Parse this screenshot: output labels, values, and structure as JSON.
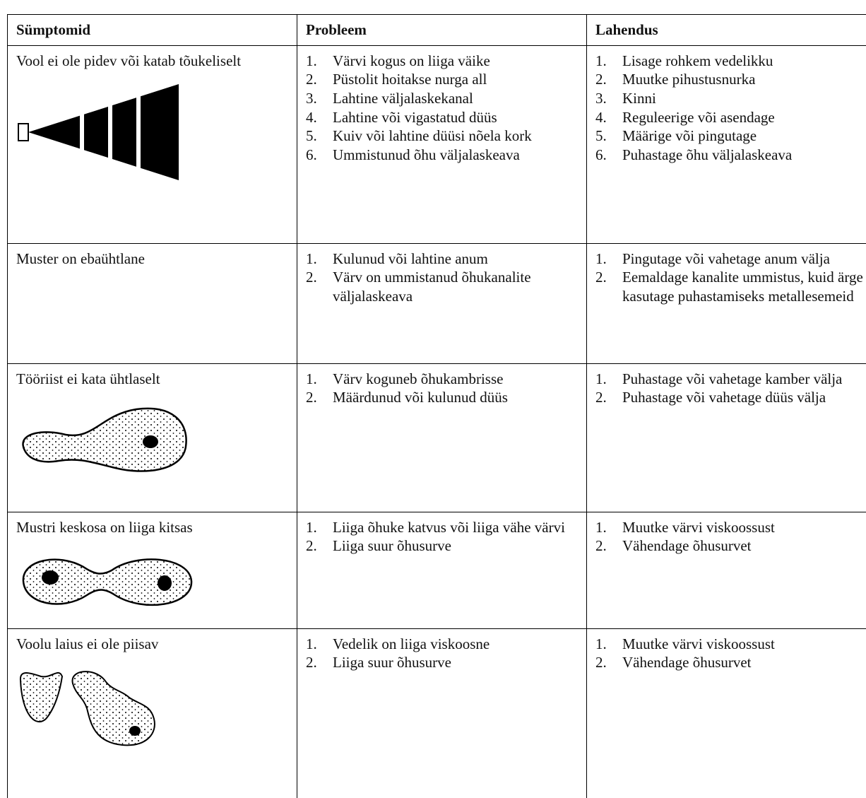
{
  "table": {
    "header": [
      "Sümptomid",
      "Probleem",
      "Lahendus"
    ],
    "rows": [
      {
        "symptom": "Vool ei ole pidev või katab tõukeliselt",
        "problem": [
          {
            "marker": "1.",
            "text": "Värvi kogus on liiga väike"
          },
          {
            "marker": "2.",
            "text": "Püstolit hoitakse nurga all"
          },
          {
            "marker": "3.",
            "text": "Lahtine väljalaskekanal"
          },
          {
            "marker": "4.",
            "text": "Lahtine või vigastatud düüs"
          },
          {
            "marker": "5.",
            "text": "Kuiv või lahtine düüsi nõela kork"
          },
          {
            "marker": "6.",
            "text": "Ummistunud õhu väljalaskeava"
          }
        ],
        "solution": [
          {
            "marker": "1.",
            "text": "Lisage rohkem vedelikku"
          },
          {
            "marker": "2.",
            "text": "Muutke pihustusnurka"
          },
          {
            "marker": "3.",
            "text": "Kinni"
          },
          {
            "marker": "4.",
            "text": "Reguleerige või asendage"
          },
          {
            "marker": "5.",
            "text": "Määrige või pingutage"
          },
          {
            "marker": "6.",
            "text": "Puhastage õhu väljalaskeava"
          }
        ]
      },
      {
        "symptom": "Muster on ebaühtlane",
        "problem": [
          {
            "marker": "1.",
            "text": "Kulunud või lahtine anum"
          },
          {
            "marker": "2.",
            "text": "Värv on ummistanud õhukanalite väljalaskeava"
          }
        ],
        "solution": [
          {
            "marker": "1.",
            "text": "Pingutage või vahetage anum välja"
          },
          {
            "marker": "2.",
            "text": "Eemaldage kanalite ummistus, kuid ärge kasutage puhastamiseks metallesemeid"
          }
        ]
      },
      {
        "symptom": "Tööriist ei kata ühtlaselt",
        "problem": [
          {
            "marker": "1.",
            "text": "Värv koguneb õhukambrisse"
          },
          {
            "marker": "2.",
            "text": "Määrdunud või kulunud düüs"
          }
        ],
        "solution": [
          {
            "marker": "1.",
            "text": "Puhastage või vahetage kamber välja"
          },
          {
            "marker": "2.",
            "text": "Puhastage või vahetage düüs välja"
          }
        ]
      },
      {
        "symptom": "Mustri keskosa on liiga kitsas",
        "problem": [
          {
            "marker": "1.",
            "text": "Liiga õhuke katvus või liiga vähe värvi"
          },
          {
            "marker": "2.",
            "text": "Liiga suur õhusurve"
          }
        ],
        "solution": [
          {
            "marker": "1.",
            "text": "Muutke värvi viskoossust"
          },
          {
            "marker": "2.",
            "text": "Vähendage õhusurvet"
          }
        ]
      },
      {
        "symptom": "Voolu laius ei ole piisav",
        "problem": [
          {
            "marker": "1.",
            "text": "Vedelik on liiga viskoosne"
          },
          {
            "marker": "2.",
            "text": "Liiga suur õhusurve"
          }
        ],
        "solution": [
          {
            "marker": "1.",
            "text": "Muutke värvi viskoossust"
          },
          {
            "marker": "2.",
            "text": "Vähendage õhusurvet"
          }
        ]
      }
    ]
  }
}
